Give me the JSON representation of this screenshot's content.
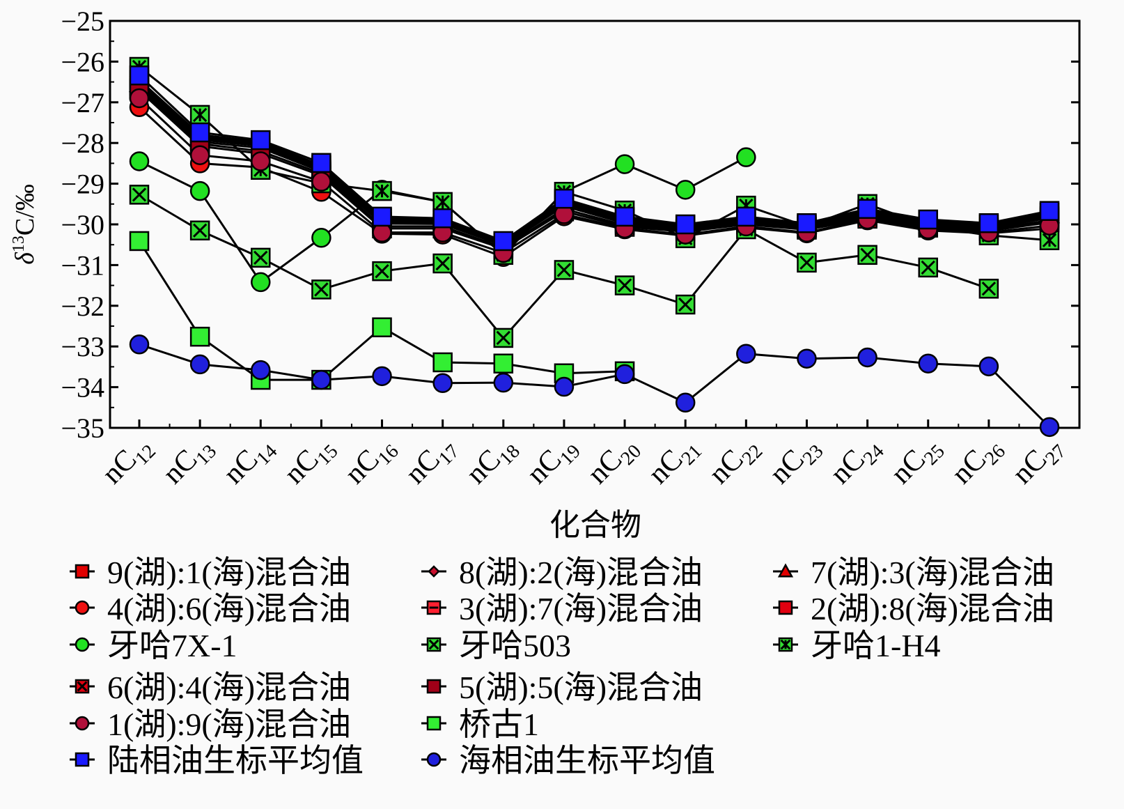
{
  "chart_data": {
    "type": "line",
    "xlabel": "化合物",
    "ylabel_parts": {
      "delta": "δ",
      "sup": "13",
      "rest": "C/‰"
    },
    "ylim": [
      -35,
      -25
    ],
    "yticks": [
      "−25",
      "−26",
      "−27",
      "−28",
      "−29",
      "−30",
      "−31",
      "−32",
      "−33",
      "−34",
      "−35"
    ],
    "categories": [
      {
        "base": "nC",
        "sub": "12"
      },
      {
        "base": "nC",
        "sub": "13"
      },
      {
        "base": "nC",
        "sub": "14"
      },
      {
        "base": "nC",
        "sub": "15"
      },
      {
        "base": "nC",
        "sub": "16"
      },
      {
        "base": "nC",
        "sub": "17"
      },
      {
        "base": "nC",
        "sub": "18"
      },
      {
        "base": "nC",
        "sub": "19"
      },
      {
        "base": "nC",
        "sub": "20"
      },
      {
        "base": "nC",
        "sub": "21"
      },
      {
        "base": "nC",
        "sub": "22"
      },
      {
        "base": "nC",
        "sub": "23"
      },
      {
        "base": "nC",
        "sub": "24"
      },
      {
        "base": "nC",
        "sub": "25"
      },
      {
        "base": "nC",
        "sub": "26"
      },
      {
        "base": "nC",
        "sub": "27"
      }
    ],
    "grid": false,
    "legend_position": "bottom",
    "series": [
      {
        "name": "9(湖):1(海)混合油",
        "marker": "square",
        "color": "#e00000",
        "values": [
          -26.45,
          -27.8,
          -27.97,
          -28.55,
          -29.84,
          -29.88,
          -30.43,
          -29.4,
          -29.84,
          -30.03,
          -29.84,
          -30.0,
          -29.66,
          -29.91,
          -30.0,
          -29.71
        ]
      },
      {
        "name": "8(湖):2(海)混合油",
        "marker": "diamond",
        "color": "#c8102e",
        "values": [
          -26.5,
          -27.85,
          -28.0,
          -28.6,
          -29.88,
          -29.9,
          -30.45,
          -29.43,
          -29.87,
          -30.05,
          -29.86,
          -30.02,
          -29.69,
          -29.93,
          -30.03,
          -29.74
        ]
      },
      {
        "name": "7(湖):3(海)混合油",
        "marker": "triangle",
        "color": "#e00000",
        "values": [
          -26.55,
          -27.88,
          -28.03,
          -28.63,
          -29.91,
          -29.93,
          -30.47,
          -29.46,
          -29.9,
          -30.07,
          -29.88,
          -30.04,
          -29.72,
          -29.95,
          -30.05,
          -29.77
        ]
      },
      {
        "name": "4(湖):6(海)混合油",
        "marker": "circle",
        "color": "#ee1111",
        "values": [
          -27.12,
          -28.5,
          -28.6,
          -29.2,
          -30.23,
          -30.25,
          -30.8,
          -29.8,
          -30.12,
          -30.28,
          -30.08,
          -30.22,
          -29.9,
          -30.15,
          -30.22,
          -30.1
        ]
      },
      {
        "name": "3(湖):7(海)混合油",
        "marker": "plus-square",
        "color": "#ff2030",
        "values": [
          -26.68,
          -28.02,
          -28.2,
          -28.75,
          -30.05,
          -30.05,
          -30.57,
          -29.62,
          -30.02,
          -30.15,
          -29.96,
          -30.1,
          -29.82,
          -30.04,
          -30.13,
          -29.9
        ]
      },
      {
        "name": "2(湖):8(海)混合油",
        "marker": "square",
        "color": "#e00010",
        "values": [
          -26.71,
          -28.08,
          -28.26,
          -28.8,
          -30.1,
          -30.1,
          -30.6,
          -29.68,
          -30.06,
          -30.18,
          -30.0,
          -30.13,
          -29.86,
          -30.08,
          -30.16,
          -29.95
        ]
      },
      {
        "name": "牙哈7X-1",
        "marker": "circle",
        "color": "#22e022",
        "values": [
          -28.45,
          -29.18,
          -31.42,
          -30.33,
          -29.15,
          -29.45,
          -30.75,
          -29.2,
          -28.52,
          -29.15,
          -28.35,
          null,
          null,
          null,
          null,
          null
        ]
      },
      {
        "name": "牙哈503",
        "marker": "x-square",
        "color": "#33dd33",
        "values": [
          -29.27,
          -30.15,
          -30.82,
          -31.6,
          -31.15,
          -30.96,
          -32.79,
          -31.12,
          -31.5,
          -31.97,
          -30.12,
          -30.94,
          -30.75,
          -31.06,
          -31.58,
          null
        ]
      },
      {
        "name": "牙哈1-H4",
        "marker": "star",
        "color": "#33dd33",
        "values": [
          -26.13,
          -27.31,
          -28.66,
          -28.99,
          -29.18,
          -29.45,
          -30.75,
          -29.2,
          -29.66,
          -30.34,
          -29.54,
          -30.05,
          -29.5,
          -30.05,
          -30.27,
          -30.39
        ]
      },
      {
        "name": "6(湖):4(海)混合油",
        "marker": "x-square",
        "color": "#e00010",
        "values": [
          -26.6,
          -27.92,
          -28.07,
          -28.66,
          -29.94,
          -29.96,
          -30.5,
          -29.5,
          -29.93,
          -30.1,
          -29.9,
          -30.06,
          -29.75,
          -29.97,
          -30.07,
          -29.8
        ]
      },
      {
        "name": "5(湖):5(海)混合油",
        "marker": "square",
        "color": "#a00018",
        "values": [
          -26.65,
          -27.97,
          -28.12,
          -28.7,
          -29.98,
          -29.99,
          -30.52,
          -29.55,
          -29.97,
          -30.12,
          -29.93,
          -30.08,
          -29.78,
          -30.0,
          -30.1,
          -29.84
        ]
      },
      {
        "name": "1(湖):9(海)混合油",
        "marker": "circle",
        "color": "#b0103a",
        "values": [
          -26.9,
          -28.3,
          -28.45,
          -28.95,
          -30.2,
          -30.2,
          -30.7,
          -29.75,
          -30.1,
          -30.25,
          -30.05,
          -30.2,
          -29.88,
          -30.12,
          -30.2,
          -30.03
        ]
      },
      {
        "name": "桥古1",
        "marker": "square",
        "color": "#33ee33",
        "values": [
          -30.41,
          -32.76,
          -33.82,
          -33.82,
          -32.53,
          -33.39,
          -33.42,
          -33.66,
          -33.61,
          null,
          null,
          null,
          null,
          null,
          null,
          null
        ]
      },
      {
        "name": "陆相油生标平均值",
        "marker": "square",
        "color": "#1a1aff",
        "values": [
          -26.34,
          -27.74,
          -27.93,
          -28.49,
          -29.81,
          -29.85,
          -30.41,
          -29.37,
          -29.81,
          -30.0,
          -29.81,
          -29.97,
          -29.62,
          -29.88,
          -29.97,
          -29.67
        ]
      },
      {
        "name": "海相油生标平均值",
        "marker": "circle",
        "color": "#2020dd",
        "values": [
          -32.95,
          -33.44,
          -33.58,
          -33.82,
          -33.73,
          -33.9,
          -33.89,
          -33.99,
          -33.68,
          -34.38,
          -33.18,
          -33.3,
          -33.27,
          -33.42,
          -33.49,
          -34.98
        ]
      }
    ]
  }
}
